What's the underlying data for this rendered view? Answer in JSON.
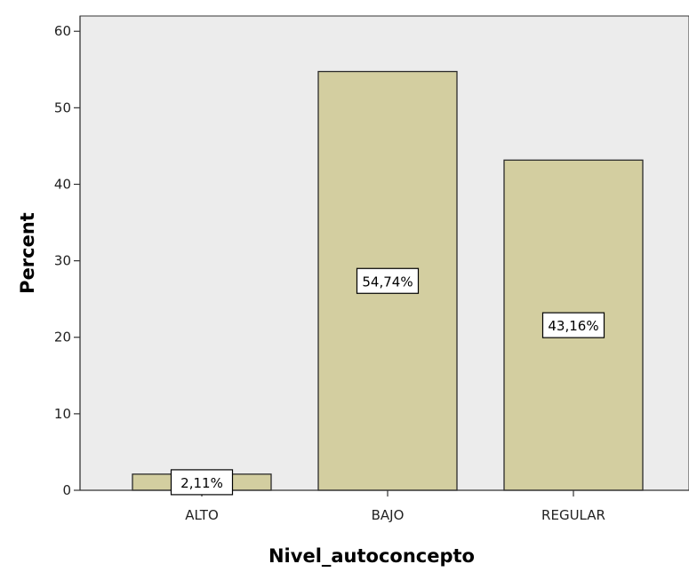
{
  "chart_data": {
    "type": "bar",
    "categories": [
      "ALTO",
      "BAJO",
      "REGULAR"
    ],
    "values": [
      2.11,
      54.74,
      43.16
    ],
    "data_labels": [
      "2,11%",
      "54,74%",
      "43,16%"
    ],
    "title": "",
    "xlabel": "Nivel_autoconcepto",
    "ylabel": "Percent",
    "ylim": [
      0,
      62
    ],
    "yticks": [
      0,
      10,
      20,
      30,
      40,
      50,
      60
    ],
    "ytick_labels": [
      "0",
      "10",
      "20",
      "30",
      "40",
      "50",
      "60"
    ],
    "grid": false,
    "legend": "none",
    "colors": {
      "plot_background": "#ececec",
      "bar_fill": "#d3cea0",
      "bar_stroke": "#2b2b2b",
      "axis": "#333333"
    }
  }
}
